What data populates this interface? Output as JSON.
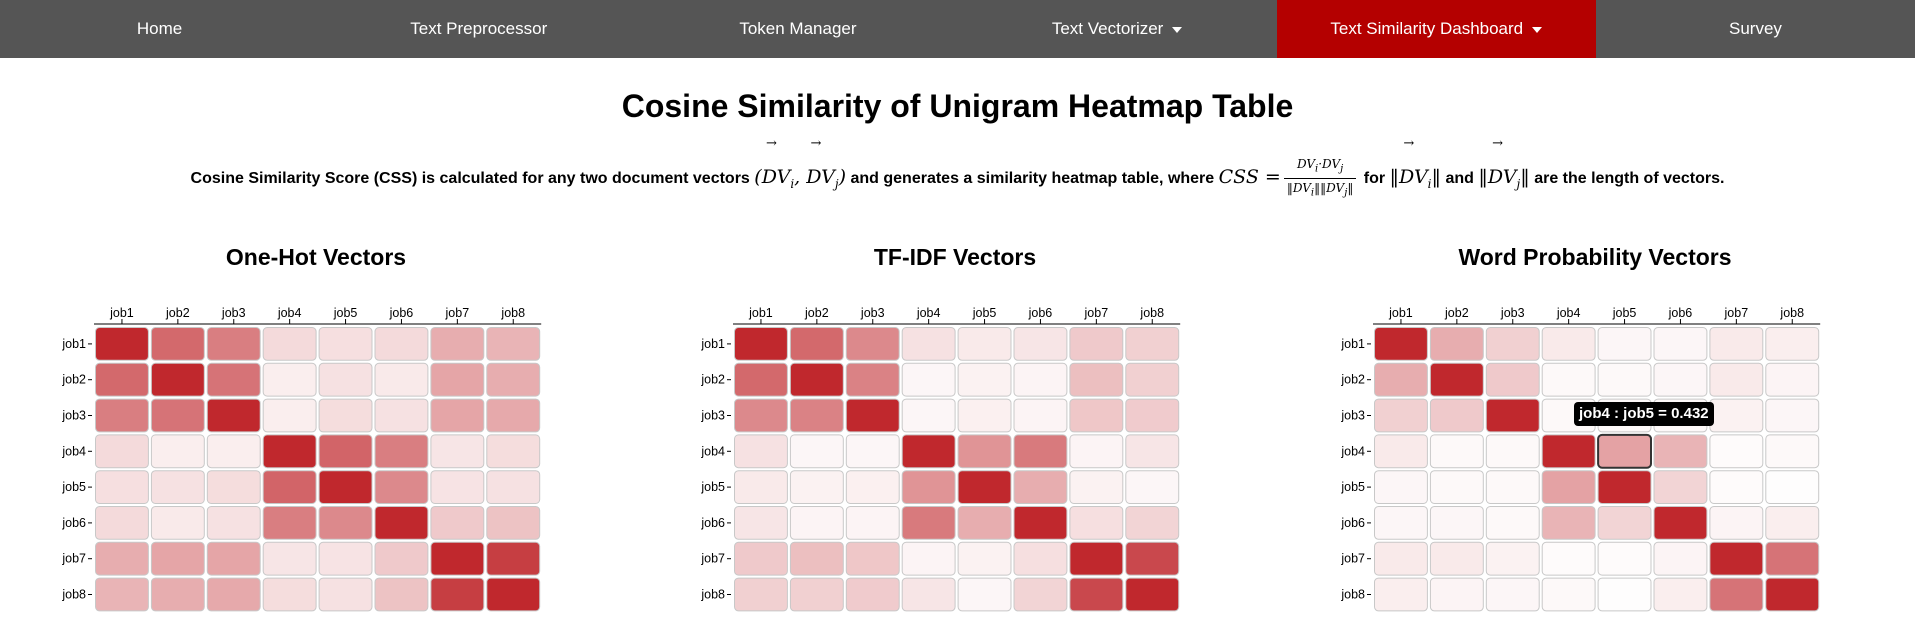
{
  "nav": {
    "items": [
      {
        "id": "home",
        "label": "Home",
        "dropdown": false,
        "active": false
      },
      {
        "id": "text-preprocessor",
        "label": "Text Preprocessor",
        "dropdown": false,
        "active": false
      },
      {
        "id": "token-manager",
        "label": "Token Manager",
        "dropdown": false,
        "active": false
      },
      {
        "id": "text-vectorizer",
        "label": "Text Vectorizer",
        "dropdown": true,
        "active": false
      },
      {
        "id": "text-similarity-dashboard",
        "label": "Text Similarity Dashboard",
        "dropdown": true,
        "active": true
      },
      {
        "id": "survey",
        "label": "Survey",
        "dropdown": false,
        "active": false
      }
    ]
  },
  "page": {
    "title": "Cosine Similarity of Unigram Heatmap Table",
    "description": {
      "part1": "Cosine Similarity Score (CSS) is calculated for any two document vectors",
      "part2": "and generates a similarity heatmap table, where",
      "part3": "for",
      "part4": "and",
      "part5": "are the length of vectors."
    }
  },
  "colors": {
    "navbar": "#555555",
    "nav_active": "#b40000",
    "heat_high": "#c0282d",
    "heat_low": "#ffffff"
  },
  "tooltip": {
    "text": "job4 : job5 = 0.432"
  },
  "chart_data": [
    {
      "type": "heatmap",
      "title": "One-Hot Vectors",
      "x": [
        "job1",
        "job2",
        "job3",
        "job4",
        "job5",
        "job6",
        "job7",
        "job8"
      ],
      "y": [
        "job1",
        "job2",
        "job3",
        "job4",
        "job5",
        "job6",
        "job7",
        "job8"
      ],
      "values": [
        [
          1.0,
          0.7,
          0.6,
          0.17,
          0.15,
          0.17,
          0.38,
          0.35
        ],
        [
          0.7,
          1.0,
          0.65,
          0.08,
          0.14,
          0.1,
          0.42,
          0.38
        ],
        [
          0.6,
          0.65,
          1.0,
          0.08,
          0.16,
          0.14,
          0.42,
          0.4
        ],
        [
          0.17,
          0.08,
          0.08,
          1.0,
          0.72,
          0.6,
          0.12,
          0.16
        ],
        [
          0.15,
          0.14,
          0.16,
          0.72,
          1.0,
          0.55,
          0.13,
          0.14
        ],
        [
          0.17,
          0.1,
          0.14,
          0.6,
          0.55,
          1.0,
          0.25,
          0.28
        ],
        [
          0.38,
          0.42,
          0.42,
          0.12,
          0.13,
          0.25,
          1.0,
          0.9
        ],
        [
          0.35,
          0.38,
          0.4,
          0.16,
          0.14,
          0.28,
          0.9,
          1.0
        ]
      ]
    },
    {
      "type": "heatmap",
      "title": "TF-IDF Vectors",
      "x": [
        "job1",
        "job2",
        "job3",
        "job4",
        "job5",
        "job6",
        "job7",
        "job8"
      ],
      "y": [
        "job1",
        "job2",
        "job3",
        "job4",
        "job5",
        "job6",
        "job7",
        "job8"
      ],
      "values": [
        [
          1.0,
          0.7,
          0.55,
          0.14,
          0.1,
          0.12,
          0.25,
          0.22
        ],
        [
          0.7,
          1.0,
          0.58,
          0.04,
          0.06,
          0.05,
          0.3,
          0.22
        ],
        [
          0.55,
          0.58,
          1.0,
          0.04,
          0.07,
          0.05,
          0.26,
          0.24
        ],
        [
          0.14,
          0.04,
          0.04,
          1.0,
          0.5,
          0.62,
          0.05,
          0.12
        ],
        [
          0.1,
          0.06,
          0.07,
          0.5,
          1.0,
          0.38,
          0.06,
          0.04
        ],
        [
          0.12,
          0.05,
          0.05,
          0.62,
          0.38,
          1.0,
          0.15,
          0.2
        ],
        [
          0.25,
          0.3,
          0.26,
          0.05,
          0.06,
          0.15,
          1.0,
          0.85
        ],
        [
          0.22,
          0.22,
          0.24,
          0.12,
          0.04,
          0.2,
          0.85,
          1.0
        ]
      ]
    },
    {
      "type": "heatmap",
      "title": "Word Probability Vectors",
      "x": [
        "job1",
        "job2",
        "job3",
        "job4",
        "job5",
        "job6",
        "job7",
        "job8"
      ],
      "y": [
        "job1",
        "job2",
        "job3",
        "job4",
        "job5",
        "job6",
        "job7",
        "job8"
      ],
      "values": [
        [
          1.0,
          0.38,
          0.22,
          0.1,
          0.04,
          0.04,
          0.1,
          0.08
        ],
        [
          0.38,
          1.0,
          0.25,
          0.03,
          0.03,
          0.04,
          0.1,
          0.05
        ],
        [
          0.22,
          0.25,
          1.0,
          0.03,
          0.03,
          0.03,
          0.06,
          0.04
        ],
        [
          0.1,
          0.03,
          0.03,
          1.0,
          0.432,
          0.35,
          0.02,
          0.03
        ],
        [
          0.04,
          0.03,
          0.03,
          0.432,
          1.0,
          0.2,
          0.02,
          0.01
        ],
        [
          0.04,
          0.04,
          0.03,
          0.35,
          0.2,
          1.0,
          0.05,
          0.08
        ],
        [
          0.1,
          0.1,
          0.06,
          0.02,
          0.02,
          0.05,
          1.0,
          0.65
        ],
        [
          0.08,
          0.05,
          0.04,
          0.03,
          0.01,
          0.08,
          0.65,
          1.0
        ]
      ],
      "highlighted_cell": {
        "row": "job4",
        "col": "job5",
        "value": 0.432
      }
    }
  ]
}
